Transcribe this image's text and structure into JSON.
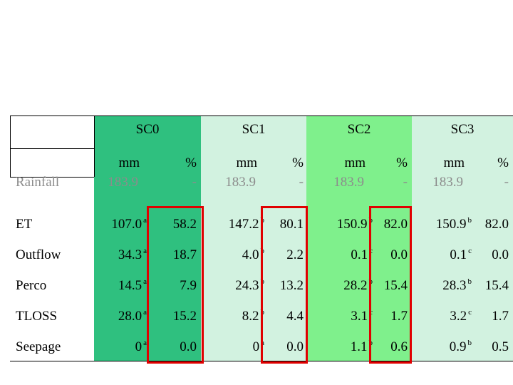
{
  "colors": {
    "sc0_bg": "#2fc07f",
    "sc1_bg": "#d2f2e0",
    "sc2_bg": "#7ff08c",
    "sc3_bg": "#d2f2e0",
    "highlight_box": "#e00000",
    "rainfall_text": "#8c8c8c"
  },
  "columns": [
    "SC0",
    "SC1",
    "SC2",
    "SC3"
  ],
  "units": {
    "mm": "mm",
    "pct": "%"
  },
  "rows": [
    {
      "label": "Rainfall",
      "cells": [
        {
          "mm": "183.9",
          "sup": "",
          "pct": "-"
        },
        {
          "mm": "183.9",
          "sup": "",
          "pct": "-"
        },
        {
          "mm": "183.9",
          "sup": "",
          "pct": "-"
        },
        {
          "mm": "183.9",
          "sup": "",
          "pct": "-"
        }
      ]
    },
    {
      "label": "ET",
      "cells": [
        {
          "mm": "107.0",
          "sup": "a",
          "pct": "58.2"
        },
        {
          "mm": "147.2",
          "sup": "b",
          "pct": "80.1"
        },
        {
          "mm": "150.9",
          "sup": "b",
          "pct": "82.0"
        },
        {
          "mm": "150.9",
          "sup": "b",
          "pct": "82.0"
        }
      ]
    },
    {
      "label": "Outflow",
      "cells": [
        {
          "mm": "34.3",
          "sup": "a",
          "pct": "18.7"
        },
        {
          "mm": "4.0",
          "sup": "b",
          "pct": "2.2"
        },
        {
          "mm": "0.1",
          "sup": "c",
          "pct": "0.0"
        },
        {
          "mm": "0.1",
          "sup": "c",
          "pct": "0.0"
        }
      ]
    },
    {
      "label": "Perco",
      "cells": [
        {
          "mm": "14.5",
          "sup": "a",
          "pct": "7.9"
        },
        {
          "mm": "24.3",
          "sup": "b",
          "pct": "13.2"
        },
        {
          "mm": "28.2",
          "sup": "b",
          "pct": "15.4"
        },
        {
          "mm": "28.3",
          "sup": "b",
          "pct": "15.4"
        }
      ]
    },
    {
      "label": "TLOSS",
      "cells": [
        {
          "mm": "28.0",
          "sup": "a",
          "pct": "15.2"
        },
        {
          "mm": "8.2",
          "sup": "b",
          "pct": "4.4"
        },
        {
          "mm": "3.1",
          "sup": "c",
          "pct": "1.7"
        },
        {
          "mm": "3.2",
          "sup": "c",
          "pct": "1.7"
        }
      ]
    },
    {
      "label": "Seepage",
      "cells": [
        {
          "mm": "0",
          "sup": "a",
          "pct": "0.0"
        },
        {
          "mm": "0",
          "sup": "a",
          "pct": "0.0"
        },
        {
          "mm": "1.1",
          "sup": "b",
          "pct": "0.6"
        },
        {
          "mm": "0.9",
          "sup": "b",
          "pct": "0.5"
        }
      ]
    }
  ]
}
